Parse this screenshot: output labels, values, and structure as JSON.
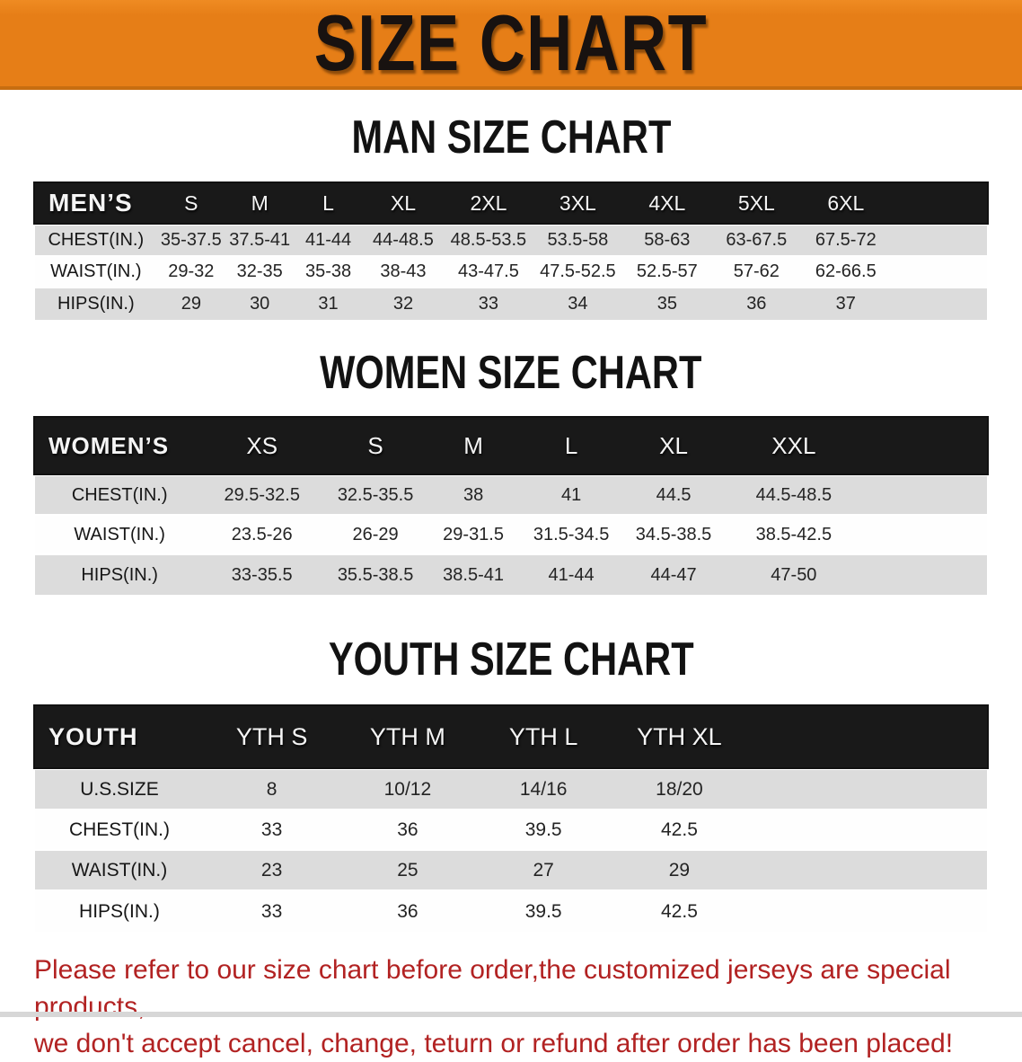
{
  "banner": {
    "title": "SIZE CHART"
  },
  "sections": [
    {
      "title": "MAN SIZE CHART",
      "table": {
        "columns": [
          "MEN’S",
          "S",
          "M",
          "L",
          "XL",
          "2XL",
          "3XL",
          "4XL",
          "5XL",
          "6XL"
        ],
        "rows": [
          {
            "label": "CHEST(IN.)",
            "values": [
              "35-37.5",
              "37.5-41",
              "41-44",
              "44-48.5",
              "48.5-53.5",
              "53.5-58",
              "58-63",
              "63-67.5",
              "67.5-72"
            ]
          },
          {
            "label": "WAIST(IN.)",
            "values": [
              "29-32",
              "32-35",
              "35-38",
              "38-43",
              "43-47.5",
              "47.5-52.5",
              "52.5-57",
              "57-62",
              "62-66.5"
            ]
          },
          {
            "label": "HIPS(IN.)",
            "values": [
              "29",
              "30",
              "31",
              "32",
              "33",
              "34",
              "35",
              "36",
              "37"
            ]
          }
        ]
      }
    },
    {
      "title": "WOMEN SIZE CHART",
      "table": {
        "columns": [
          "WOMEN’S",
          "XS",
          "S",
          "M",
          "L",
          "XL",
          "XXL"
        ],
        "rows": [
          {
            "label": "CHEST(IN.)",
            "values": [
              "29.5-32.5",
              "32.5-35.5",
              "38",
              "41",
              "44.5",
              "44.5-48.5"
            ]
          },
          {
            "label": "WAIST(IN.)",
            "values": [
              "23.5-26",
              "26-29",
              "29-31.5",
              "31.5-34.5",
              "34.5-38.5",
              "38.5-42.5"
            ]
          },
          {
            "label": "HIPS(IN.)",
            "values": [
              "33-35.5",
              "35.5-38.5",
              "38.5-41",
              "41-44",
              "44-47",
              "47-50"
            ]
          }
        ]
      }
    },
    {
      "title": "YOUTH SIZE CHART",
      "table": {
        "columns": [
          "YOUTH",
          "YTH S",
          "YTH M",
          "YTH L",
          "YTH XL"
        ],
        "rows": [
          {
            "label": "U.S.SIZE",
            "values": [
              "8",
              "10/12",
              "14/16",
              "18/20"
            ]
          },
          {
            "label": "CHEST(IN.)",
            "values": [
              "33",
              "36",
              "39.5",
              "42.5"
            ]
          },
          {
            "label": "WAIST(IN.)",
            "values": [
              "23",
              "25",
              "27",
              "29"
            ]
          },
          {
            "label": "HIPS(IN.)",
            "values": [
              "33",
              "36",
              "39.5",
              "42.5"
            ]
          }
        ]
      }
    }
  ],
  "disclaimer": {
    "line1": "Please refer to our size chart before order,the customized jerseys are special products,",
    "line2": "we don't accept cancel, change, teturn or refund after order has been placed!"
  },
  "colors": {
    "banner_orange": "#E67E17",
    "header_black": "#191919",
    "row_gray": "#DCDCDC",
    "disclaimer_red": "#B22222"
  }
}
